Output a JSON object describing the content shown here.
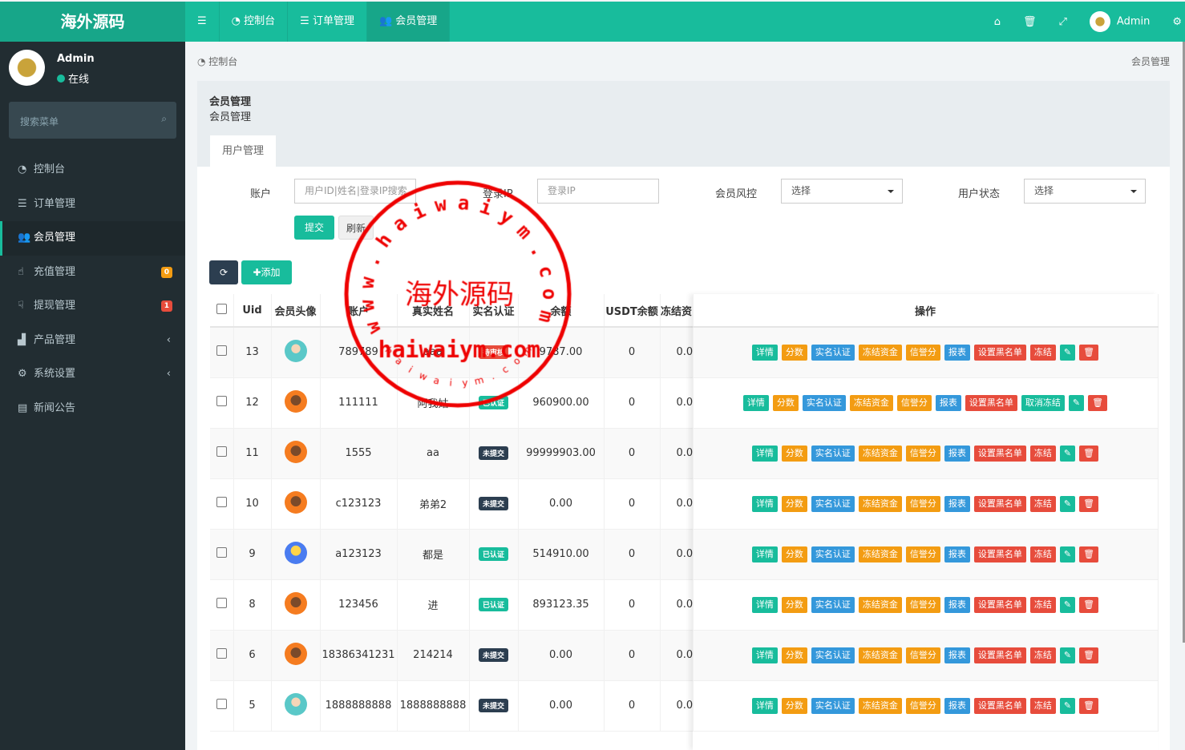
{
  "app": {
    "logo": "海外源码"
  },
  "topnav": {
    "menu_icon": "bars-icon",
    "items": [
      {
        "label": "控制台",
        "icon": "dashboard-icon"
      },
      {
        "label": "订单管理",
        "icon": "list-icon"
      },
      {
        "label": "会员管理",
        "icon": "users-icon",
        "active": true
      }
    ],
    "user": "Admin"
  },
  "sidebar": {
    "user": "Admin",
    "status": "在线",
    "search_placeholder": "搜索菜单",
    "items": [
      {
        "label": "控制台",
        "icon": "dashboard-icon"
      },
      {
        "label": "订单管理",
        "icon": "list-icon"
      },
      {
        "label": "会员管理",
        "icon": "users-icon",
        "active": true
      },
      {
        "label": "充值管理",
        "icon": "hand-point-icon",
        "badge": "0",
        "badge_color": "#f39c12"
      },
      {
        "label": "提现管理",
        "icon": "hand-down-icon",
        "badge": "1",
        "badge_color": "#e74c3c"
      },
      {
        "label": "产品管理",
        "icon": "shopping-bag-icon",
        "chevron": true
      },
      {
        "label": "系统设置",
        "icon": "cogs-icon",
        "chevron": true
      },
      {
        "label": "新闻公告",
        "icon": "newspaper-icon"
      }
    ]
  },
  "breadcrumb": {
    "left": "控制台",
    "right": "会员管理"
  },
  "panel": {
    "title": "会员管理",
    "subtitle": "会员管理",
    "tab": "用户管理"
  },
  "filters": {
    "account_label": "账户",
    "account_placeholder": "用户ID|姓名|登录IP搜索",
    "ip_label": "登录IP",
    "ip_placeholder": "登录IP",
    "risk_label": "会员风控",
    "risk_value": "选择",
    "status_label": "用户状态",
    "status_value": "选择",
    "submit": "提交",
    "reset": "刷新"
  },
  "toolbar": {
    "add": "添加"
  },
  "table": {
    "headers": [
      "Uid",
      "会员头像",
      "账户",
      "真实姓名",
      "实名认证",
      "余额",
      "USDT余额",
      "冻结资",
      "操作"
    ],
    "rows": [
      {
        "uid": "13",
        "avatar": "male-teal",
        "account": "789789",
        "name": "aaa",
        "auth": "待审核",
        "balance": "9787.00",
        "usdt": "0",
        "frozen": "0.0",
        "freeze": "冻结"
      },
      {
        "uid": "12",
        "avatar": "orange",
        "account": "111111",
        "name": "阿我姑",
        "auth": "已认证",
        "balance": "960900.00",
        "usdt": "0",
        "frozen": "0.0",
        "freeze": "取消冻结"
      },
      {
        "uid": "11",
        "avatar": "orange",
        "account": "1555",
        "name": "aa",
        "auth": "未提交",
        "balance": "99999903.00",
        "usdt": "0",
        "frozen": "0.0",
        "freeze": "冻结"
      },
      {
        "uid": "10",
        "avatar": "orange",
        "account": "c123123",
        "name": "弟弟2",
        "auth": "未提交",
        "balance": "0.00",
        "usdt": "0",
        "frozen": "0.0",
        "freeze": "冻结"
      },
      {
        "uid": "9",
        "avatar": "blue",
        "account": "a123123",
        "name": "都是",
        "auth": "已认证",
        "balance": "514910.00",
        "usdt": "0",
        "frozen": "0.0",
        "freeze": "冻结"
      },
      {
        "uid": "8",
        "avatar": "orange",
        "account": "123456",
        "name": "进",
        "auth": "已认证",
        "balance": "893123.35",
        "usdt": "0",
        "frozen": "0.0",
        "freeze": "冻结"
      },
      {
        "uid": "6",
        "avatar": "orange",
        "account": "18386341231",
        "name": "214214",
        "auth": "未提交",
        "balance": "0.00",
        "usdt": "0",
        "frozen": "0.0",
        "freeze": "冻结"
      },
      {
        "uid": "5",
        "avatar": "male-teal",
        "account": "1888888888",
        "name": "1888888888",
        "auth": "未提交",
        "balance": "0.00",
        "usdt": "0",
        "frozen": "0.0",
        "freeze": "冻结"
      }
    ],
    "actions": [
      {
        "label": "详情",
        "color": "#18bc9c"
      },
      {
        "label": "分数",
        "color": "#f39c12"
      },
      {
        "label": "实名认证",
        "color": "#3498db"
      },
      {
        "label": "冻结资金",
        "color": "#f39c12"
      },
      {
        "label": "信誉分",
        "color": "#f39c12"
      },
      {
        "label": "报表",
        "color": "#3498db"
      },
      {
        "label": "设置黑名单",
        "color": "#e74c3c"
      }
    ]
  },
  "auth_colors": {
    "待审核": "#e74c3c",
    "已认证": "#18bc9c",
    "未提交": "#2c3e50"
  },
  "watermark": {
    "ring": "www.haiwaiym.com",
    "center": "海外源码",
    "main": "haiwaiym.com",
    "bottom": "haiwaiym.com"
  }
}
